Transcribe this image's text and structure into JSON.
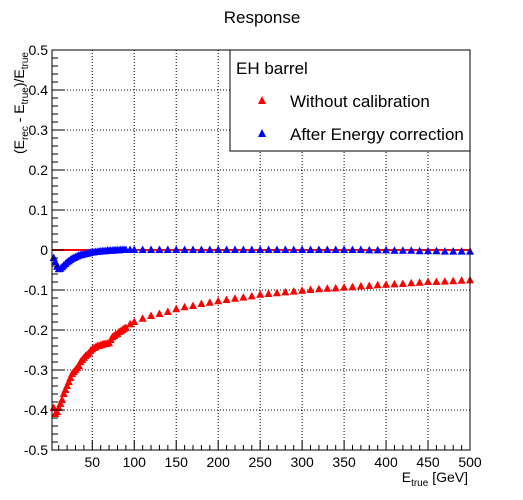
{
  "chart_data": {
    "type": "scatter",
    "title": "Response",
    "xlabel": {
      "main": "E",
      "sub": "true",
      "unit": " [GeV]"
    },
    "ylabel": {
      "parts": [
        "(E",
        "rec",
        " - E",
        "true",
        ")/E",
        "true"
      ]
    },
    "xlim": [
      2,
      500
    ],
    "ylim": [
      -0.5,
      0.5
    ],
    "x_ticks": [
      50,
      100,
      150,
      200,
      250,
      300,
      350,
      400,
      450,
      500
    ],
    "y_ticks": [
      -0.5,
      -0.4,
      -0.3,
      -0.2,
      -0.1,
      0,
      0.1,
      0.2,
      0.3,
      0.4,
      0.5
    ],
    "y_tick_labels": [
      "-0.5",
      "-0.4",
      "-0.3",
      "-0.2",
      "-0.1",
      "0",
      "0.1",
      "0.2",
      "0.3",
      "0.4",
      "0.5"
    ],
    "grid": true,
    "legend": {
      "header": "EH barrel",
      "placement": "top-right",
      "entries": [
        "Without calibration",
        "After Energy correction"
      ]
    },
    "reference_line": {
      "y": 0,
      "color": "#ff0000"
    },
    "series": [
      {
        "name": "Without calibration",
        "color": "#ff0000",
        "marker": "triangle",
        "x": [
          4,
          6,
          8,
          10,
          12,
          14,
          16,
          18,
          20,
          22,
          24,
          26,
          28,
          30,
          32,
          34,
          36,
          38,
          40,
          42,
          44,
          46,
          48,
          50,
          52,
          54,
          56,
          58,
          60,
          62,
          64,
          66,
          68,
          70,
          72,
          74,
          76,
          78,
          80,
          82,
          84,
          86,
          88,
          90,
          95,
          100,
          110,
          120,
          130,
          140,
          150,
          160,
          170,
          180,
          190,
          200,
          210,
          220,
          230,
          240,
          250,
          260,
          270,
          280,
          290,
          300,
          310,
          320,
          330,
          340,
          350,
          360,
          370,
          380,
          390,
          400,
          410,
          420,
          430,
          440,
          450,
          460,
          470,
          480,
          490,
          500
        ],
        "y": [
          -0.395,
          -0.41,
          -0.405,
          -0.395,
          -0.385,
          -0.375,
          -0.36,
          -0.35,
          -0.34,
          -0.33,
          -0.32,
          -0.31,
          -0.305,
          -0.3,
          -0.295,
          -0.29,
          -0.28,
          -0.275,
          -0.27,
          -0.265,
          -0.262,
          -0.258,
          -0.252,
          -0.248,
          -0.245,
          -0.243,
          -0.24,
          -0.24,
          -0.238,
          -0.237,
          -0.235,
          -0.235,
          -0.234,
          -0.233,
          -0.225,
          -0.218,
          -0.215,
          -0.212,
          -0.21,
          -0.205,
          -0.203,
          -0.2,
          -0.197,
          -0.195,
          -0.186,
          -0.18,
          -0.172,
          -0.165,
          -0.16,
          -0.155,
          -0.148,
          -0.143,
          -0.14,
          -0.135,
          -0.132,
          -0.128,
          -0.125,
          -0.122,
          -0.119,
          -0.116,
          -0.112,
          -0.11,
          -0.108,
          -0.106,
          -0.104,
          -0.102,
          -0.1,
          -0.098,
          -0.097,
          -0.096,
          -0.094,
          -0.093,
          -0.091,
          -0.09,
          -0.088,
          -0.087,
          -0.086,
          -0.085,
          -0.083,
          -0.082,
          -0.08,
          -0.08,
          -0.079,
          -0.078,
          -0.077,
          -0.076
        ]
      },
      {
        "name": "After Energy correction",
        "color": "#0000ff",
        "marker": "triangle",
        "x": [
          4,
          6,
          8,
          10,
          12,
          14,
          16,
          18,
          20,
          22,
          24,
          26,
          28,
          30,
          32,
          34,
          36,
          38,
          40,
          42,
          44,
          46,
          48,
          50,
          52,
          54,
          56,
          58,
          60,
          62,
          64,
          66,
          68,
          70,
          72,
          74,
          76,
          78,
          80,
          82,
          84,
          86,
          88,
          90,
          95,
          100,
          110,
          120,
          130,
          140,
          150,
          160,
          170,
          180,
          190,
          200,
          210,
          220,
          230,
          240,
          250,
          260,
          270,
          280,
          290,
          300,
          310,
          320,
          330,
          340,
          350,
          360,
          370,
          380,
          390,
          400,
          410,
          420,
          430,
          440,
          450,
          460,
          470,
          480,
          490,
          500
        ],
        "y": [
          -0.02,
          -0.03,
          -0.042,
          -0.048,
          -0.047,
          -0.043,
          -0.039,
          -0.035,
          -0.031,
          -0.028,
          -0.025,
          -0.022,
          -0.02,
          -0.018,
          -0.016,
          -0.014,
          -0.013,
          -0.012,
          -0.011,
          -0.01,
          -0.009,
          -0.008,
          -0.007,
          -0.006,
          -0.006,
          -0.005,
          -0.005,
          -0.004,
          -0.004,
          -0.003,
          -0.003,
          -0.003,
          -0.002,
          -0.002,
          -0.002,
          -0.002,
          -0.001,
          -0.001,
          -0.001,
          -0.001,
          0,
          0,
          0,
          0,
          0,
          0,
          0,
          0,
          0,
          0,
          0,
          0,
          0,
          0,
          0,
          0,
          0,
          0,
          0,
          0,
          0,
          0,
          0,
          0,
          0,
          0,
          0,
          0,
          0,
          0,
          0,
          0,
          0,
          -0.001,
          -0.001,
          -0.001,
          -0.002,
          -0.002,
          -0.002,
          -0.003,
          -0.003,
          -0.003,
          -0.004,
          -0.004,
          -0.004,
          -0.004
        ]
      }
    ]
  }
}
